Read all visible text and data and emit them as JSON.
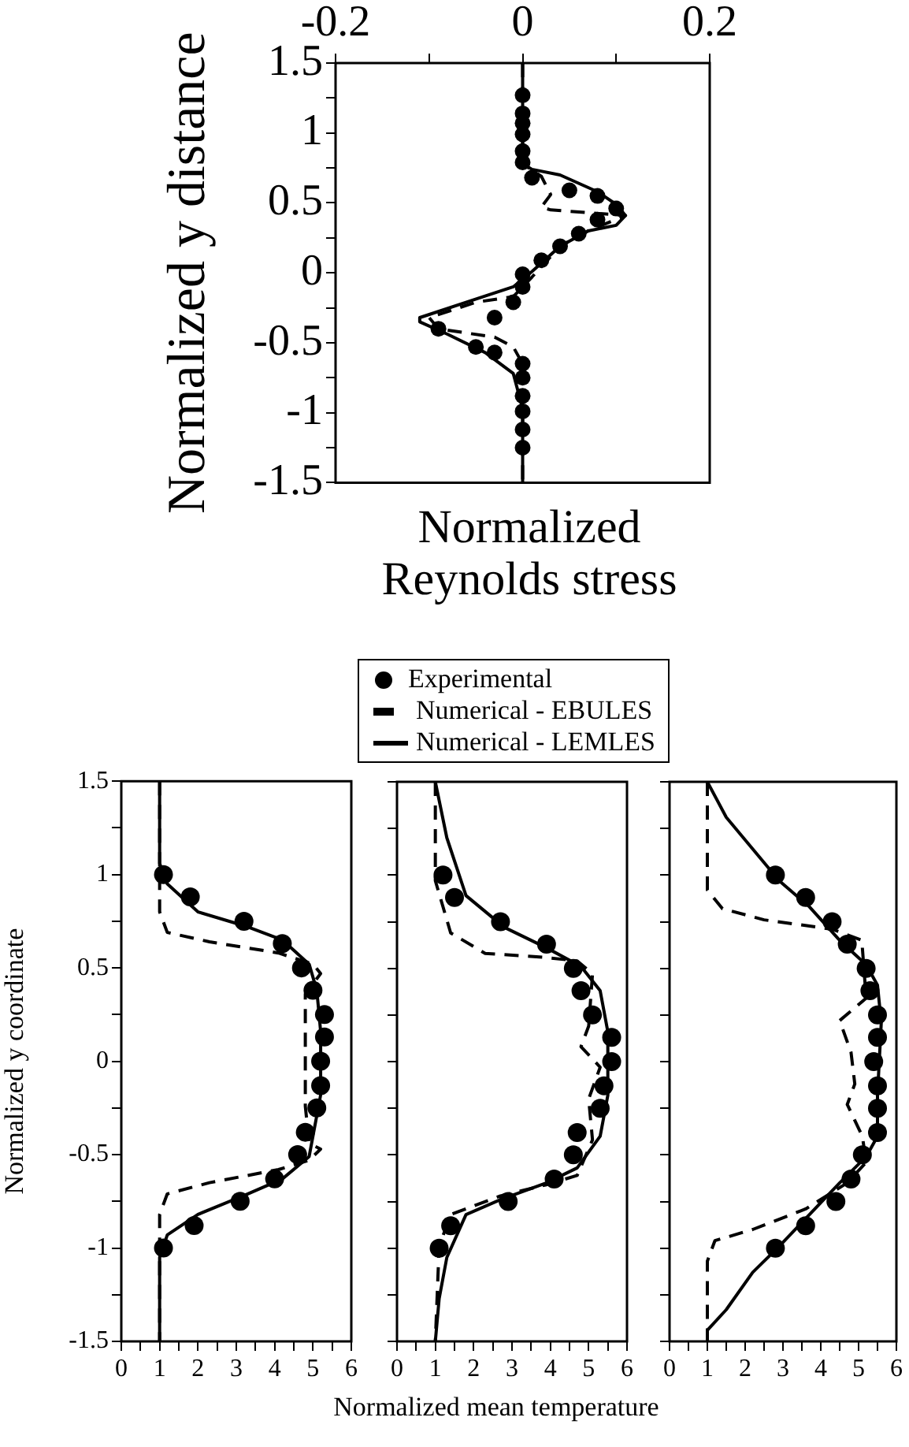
{
  "chart_data": [
    {
      "type": "line",
      "xlabel": "Normalized Reynolds stress",
      "ylabel": "Normalized y distance",
      "xlim": [
        -0.2,
        0.2
      ],
      "xticks": [
        -0.2,
        {
          "value": -0.1,
          "label": null
        },
        0,
        {
          "value": 0.1,
          "label": null
        },
        0.2
      ],
      "ylim": [
        -1.5,
        1.5
      ],
      "yticks": [
        -1.5,
        {
          "value": -1.25,
          "label": null
        },
        -1,
        {
          "value": -0.75,
          "label": null
        },
        -0.5,
        {
          "value": -0.25,
          "label": null
        },
        0,
        {
          "value": 0.25,
          "label": null
        },
        0.5,
        {
          "value": 0.75,
          "label": null
        },
        1,
        {
          "value": 1.25,
          "label": null
        },
        1.5
      ],
      "series": [
        {
          "type": "scatter",
          "color": "#000000",
          "marker": "circle",
          "x": [
            0,
            0,
            0,
            0,
            0,
            0,
            0.01,
            0.05,
            0.08,
            0.1,
            0.08,
            0.06,
            0.04,
            0.02,
            0,
            0,
            -0.01,
            -0.03,
            -0.09,
            -0.05,
            -0.03,
            0,
            0,
            0,
            0,
            0,
            0
          ],
          "values": [
            1.27,
            1.14,
            1.07,
            0.99,
            0.87,
            0.79,
            0.68,
            0.59,
            0.55,
            0.46,
            0.38,
            0.28,
            0.19,
            0.09,
            -0.01,
            -0.1,
            -0.21,
            -0.32,
            -0.4,
            -0.53,
            -0.57,
            -0.65,
            -0.75,
            -0.88,
            -0.99,
            -1.12,
            -1.25
          ]
        },
        {
          "type": "line",
          "color": "#000000",
          "marker": "none",
          "line_style": "dashed",
          "x": [
            0,
            0,
            0.02,
            0.03,
            0.02,
            0.03,
            0.11,
            0.07,
            0.04,
            0.01,
            -0.01,
            -0.05,
            -0.1,
            -0.09,
            -0.03,
            -0.01,
            0,
            0
          ],
          "values": [
            1.5,
            0.78,
            0.69,
            0.56,
            0.47,
            0.45,
            0.41,
            0.3,
            0.19,
            -0.03,
            -0.17,
            -0.21,
            -0.32,
            -0.4,
            -0.46,
            -0.53,
            -0.65,
            -1.5
          ]
        },
        {
          "type": "line",
          "color": "#000000",
          "marker": "none",
          "line_style": "solid",
          "x": [
            0,
            0,
            0.01,
            0.04,
            0.08,
            0.1,
            0.11,
            0.1,
            0.07,
            0.04,
            0.01,
            -0.01,
            -0.06,
            -0.11,
            -0.11,
            -0.08,
            -0.04,
            -0.01,
            0,
            0
          ],
          "values": [
            1.5,
            0.78,
            0.74,
            0.7,
            0.58,
            0.49,
            0.41,
            0.34,
            0.3,
            0.19,
            0.01,
            -0.1,
            -0.21,
            -0.32,
            -0.35,
            -0.44,
            -0.57,
            -0.72,
            -0.97,
            -1.5
          ]
        }
      ]
    },
    {
      "type": "line",
      "ylabel": "Normalized y coordinate",
      "xlim": [
        0,
        6
      ],
      "xticks": [
        0,
        {
          "value": 0.5,
          "label": null
        },
        1,
        {
          "value": 1.5,
          "label": null
        },
        2,
        {
          "value": 2.5,
          "label": null
        },
        3,
        {
          "value": 3.5,
          "label": null
        },
        4,
        {
          "value": 4.5,
          "label": null
        },
        5,
        {
          "value": 5.5,
          "label": null
        },
        6
      ],
      "ylim": [
        -1.5,
        1.5
      ],
      "yticks": [
        -1.5,
        {
          "value": -1.25,
          "label": null
        },
        -1,
        {
          "value": -0.75,
          "label": null
        },
        -0.5,
        {
          "value": -0.25,
          "label": null
        },
        0,
        {
          "value": 0.25,
          "label": null
        },
        0.5,
        {
          "value": 0.75,
          "label": null
        },
        1,
        {
          "value": 1.25,
          "label": null
        },
        1.5
      ],
      "series": [
        {
          "type": "scatter",
          "color": "#000000",
          "marker": "circle",
          "x": [
            1.1,
            1.8,
            3.2,
            4.2,
            4.7,
            5,
            5.3,
            5.3,
            5.2,
            5.2,
            5.1,
            4.8,
            4.6,
            4,
            3.1,
            1.9,
            1.1
          ],
          "values": [
            1,
            0.88,
            0.75,
            0.63,
            0.5,
            0.38,
            0.25,
            0.13,
            0,
            -0.13,
            -0.25,
            -0.38,
            -0.5,
            -0.63,
            -0.75,
            -0.88,
            -1
          ]
        },
        {
          "type": "line",
          "color": "#000000",
          "marker": "none",
          "line_style": "dashed",
          "x": [
            1,
            1,
            1.2,
            2.3,
            4.1,
            5,
            5.2,
            4.8,
            4.8,
            4.8,
            4.9,
            5.2,
            4.9,
            4.1,
            2.3,
            1.2,
            1,
            1
          ],
          "values": [
            1.5,
            0.8,
            0.69,
            0.64,
            0.58,
            0.52,
            0.47,
            0.36,
            0.1,
            -0.24,
            -0.44,
            -0.47,
            -0.53,
            -0.58,
            -0.65,
            -0.71,
            -0.82,
            -1.5
          ]
        },
        {
          "type": "line",
          "color": "#000000",
          "marker": "none",
          "line_style": "solid",
          "x": [
            1,
            1,
            1.2,
            2,
            3.3,
            4.2,
            4.9,
            5.1,
            5.2,
            5.2,
            5,
            4.9,
            4.2,
            3.3,
            2,
            1.2,
            1,
            1
          ],
          "values": [
            1.5,
            1.06,
            0.95,
            0.8,
            0.72,
            0.65,
            0.52,
            0.38,
            0.16,
            -0.18,
            -0.4,
            -0.51,
            -0.63,
            -0.71,
            -0.82,
            -0.93,
            -1.05,
            -1.5
          ]
        }
      ]
    },
    {
      "type": "line",
      "xlabel": "Normalized mean temperature",
      "legend": "top",
      "tick_labels": "x",
      "xlim": [
        0,
        6
      ],
      "xticks": [
        0,
        {
          "value": 0.5,
          "label": null
        },
        1,
        {
          "value": 1.5,
          "label": null
        },
        2,
        {
          "value": 2.5,
          "label": null
        },
        3,
        {
          "value": 3.5,
          "label": null
        },
        4,
        {
          "value": 4.5,
          "label": null
        },
        5,
        {
          "value": 5.5,
          "label": null
        },
        6
      ],
      "ylim": [
        -1.5,
        1.5
      ],
      "yticks": [
        -1.5,
        {
          "value": -1.25,
          "label": null
        },
        -1,
        {
          "value": -0.75,
          "label": null
        },
        -0.5,
        {
          "value": -0.25,
          "label": null
        },
        0,
        {
          "value": 0.25,
          "label": null
        },
        0.5,
        {
          "value": 0.75,
          "label": null
        },
        1,
        {
          "value": 1.25,
          "label": null
        },
        1.5
      ],
      "series": [
        {
          "type": "scatter",
          "name": "Experimental",
          "color": "#000000",
          "marker": "circle",
          "x": [
            1.2,
            1.5,
            2.7,
            3.9,
            4.6,
            4.8,
            5.1,
            5.6,
            5.6,
            5.4,
            5.3,
            4.7,
            4.6,
            4.1,
            2.9,
            1.4,
            1.1
          ],
          "values": [
            1,
            0.88,
            0.75,
            0.63,
            0.5,
            0.38,
            0.25,
            0.13,
            0,
            -0.13,
            -0.25,
            -0.38,
            -0.5,
            -0.63,
            -0.75,
            -0.88,
            -1
          ]
        },
        {
          "type": "line",
          "name": "Numerical - EBULES",
          "color": "#000000",
          "marker": "none",
          "line_style": "dashed",
          "x": [
            1,
            1,
            1.4,
            2.3,
            3.8,
            4.7,
            5.1,
            5,
            4.8,
            5.3,
            5,
            5.1,
            4.7,
            3.9,
            2.7,
            1.4,
            1.1,
            1
          ],
          "values": [
            1.5,
            0.97,
            0.69,
            0.58,
            0.56,
            0.54,
            0.47,
            0.19,
            0.08,
            -0.03,
            -0.2,
            -0.42,
            -0.61,
            -0.66,
            -0.72,
            -0.82,
            -0.99,
            -1.5
          ]
        },
        {
          "type": "line",
          "name": "Numerical - LEMLES",
          "color": "#000000",
          "marker": "none",
          "line_style": "solid",
          "x": [
            1,
            1.3,
            1.8,
            2.8,
            3.9,
            4.8,
            5.3,
            5.5,
            5.5,
            5.3,
            4.7,
            3.9,
            2.7,
            1.8,
            1.3,
            1.1,
            1
          ],
          "values": [
            1.5,
            1.2,
            0.89,
            0.72,
            0.61,
            0.51,
            0.38,
            0.16,
            -0.18,
            -0.4,
            -0.57,
            -0.65,
            -0.74,
            -0.82,
            -1.05,
            -1.27,
            -1.5
          ]
        }
      ]
    },
    {
      "type": "line",
      "tick_labels": "x",
      "xlim": [
        0,
        6
      ],
      "xticks": [
        0,
        {
          "value": 0.5,
          "label": null
        },
        1,
        {
          "value": 1.5,
          "label": null
        },
        2,
        {
          "value": 2.5,
          "label": null
        },
        3,
        {
          "value": 3.5,
          "label": null
        },
        4,
        {
          "value": 4.5,
          "label": null
        },
        5,
        {
          "value": 5.5,
          "label": null
        },
        6
      ],
      "ylim": [
        -1.5,
        1.5
      ],
      "yticks": [
        -1.5,
        {
          "value": -1.25,
          "label": null
        },
        -1,
        {
          "value": -0.75,
          "label": null
        },
        -0.5,
        {
          "value": -0.25,
          "label": null
        },
        0,
        {
          "value": 0.25,
          "label": null
        },
        0.5,
        {
          "value": 0.75,
          "label": null
        },
        1,
        {
          "value": 1.25,
          "label": null
        },
        1.5
      ],
      "series": [
        {
          "type": "scatter",
          "color": "#000000",
          "marker": "circle",
          "x": [
            2.8,
            3.6,
            4.3,
            4.7,
            5.2,
            5.3,
            5.5,
            5.5,
            5.4,
            5.5,
            5.5,
            5.5,
            5.1,
            4.8,
            4.4,
            3.6,
            2.8
          ],
          "values": [
            1,
            0.88,
            0.75,
            0.63,
            0.5,
            0.38,
            0.25,
            0.13,
            0,
            -0.13,
            -0.25,
            -0.38,
            -0.5,
            -0.63,
            -0.75,
            -0.88,
            -1
          ]
        },
        {
          "type": "line",
          "color": "#000000",
          "marker": "none",
          "line_style": "dashed",
          "x": [
            1,
            1,
            1.4,
            2.5,
            4.3,
            5.1,
            5.1,
            5.2,
            4.5,
            4.8,
            4.9,
            4.7,
            5.1,
            5.2,
            4.7,
            3.6,
            2.2,
            1.2,
            1,
            1
          ],
          "values": [
            1.5,
            0.92,
            0.82,
            0.76,
            0.71,
            0.65,
            0.61,
            0.34,
            0.22,
            0.05,
            -0.12,
            -0.23,
            -0.4,
            -0.54,
            -0.65,
            -0.79,
            -0.9,
            -0.96,
            -1.07,
            -1.5
          ]
        },
        {
          "type": "line",
          "color": "#000000",
          "marker": "none",
          "line_style": "solid",
          "x": [
            1,
            1.5,
            2.2,
            2.9,
            3.7,
            4.5,
            5.2,
            5.5,
            5.6,
            5.5,
            5.5,
            5.2,
            4.5,
            3.7,
            2.9,
            2.2,
            1.5,
            1,
            1
          ],
          "values": [
            1.5,
            1.31,
            1.14,
            0.97,
            0.83,
            0.65,
            0.52,
            0.41,
            0.21,
            -0.18,
            -0.4,
            -0.51,
            -0.65,
            -0.82,
            -0.99,
            -1.13,
            -1.33,
            -1.44,
            -1.5
          ]
        }
      ]
    }
  ]
}
